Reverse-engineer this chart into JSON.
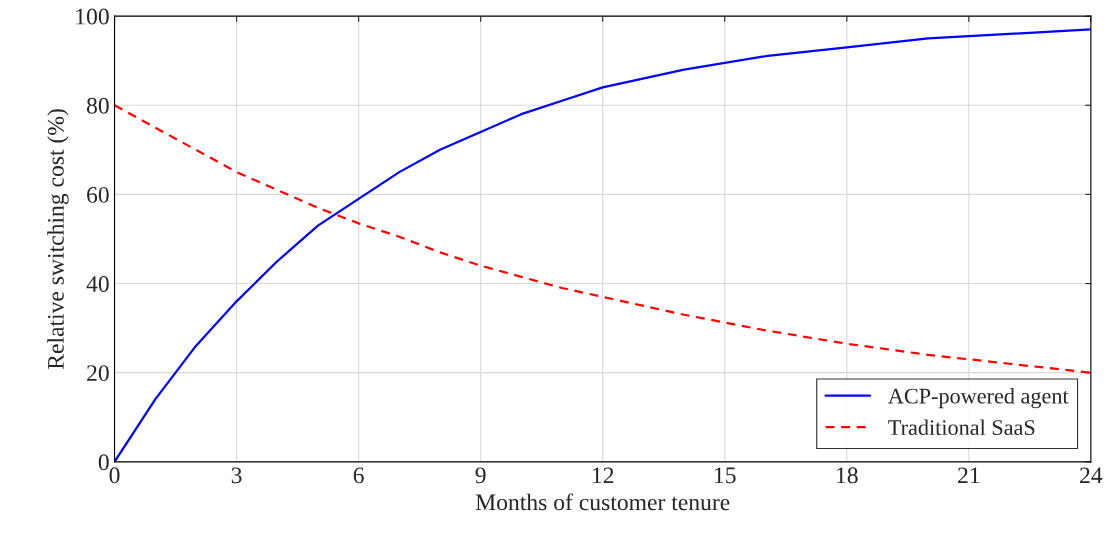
{
  "chart_data": {
    "type": "line",
    "xlabel": "Months of customer tenure",
    "ylabel": "Relative switching cost (%)",
    "x": [
      0,
      1,
      2,
      3,
      4,
      5,
      6,
      7,
      8,
      9,
      10,
      11,
      12,
      14,
      16,
      18,
      20,
      22,
      24
    ],
    "series": [
      {
        "name": "ACP-powered agent",
        "color": "#0000ff",
        "line_style": "solid",
        "values": [
          0,
          14,
          26,
          36,
          45,
          53,
          59,
          65,
          70,
          74,
          78,
          81,
          84,
          88,
          91,
          93,
          95,
          96,
          97
        ]
      },
      {
        "name": "Traditional SaaS",
        "color": "#ff0000",
        "line_style": "dashed",
        "values": [
          80,
          75,
          70,
          65,
          61,
          57,
          53.5,
          50.5,
          47,
          44,
          41.5,
          39,
          37,
          33,
          29.5,
          26.5,
          24,
          22,
          20
        ]
      }
    ],
    "xlim": [
      0,
      24
    ],
    "xticks": [
      0,
      3,
      6,
      9,
      12,
      15,
      18,
      21,
      24
    ],
    "ylim": [
      0,
      100
    ],
    "yticks": [
      0,
      20,
      40,
      60,
      80,
      100
    ],
    "grid": true,
    "legend": "bottom right",
    "marker": "none"
  }
}
